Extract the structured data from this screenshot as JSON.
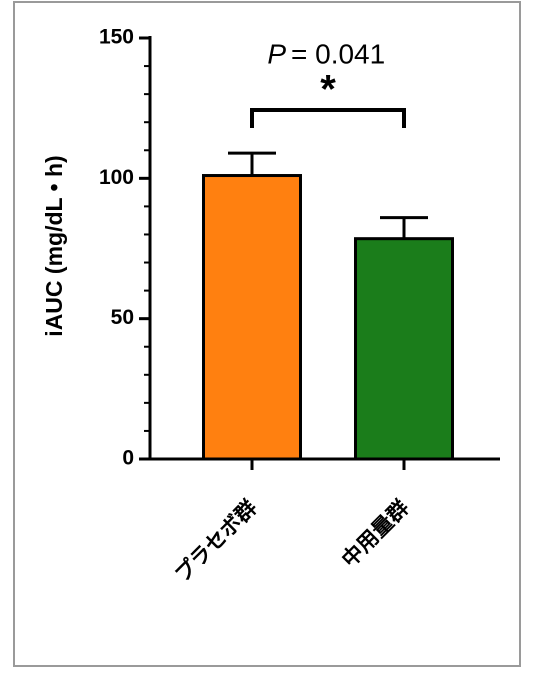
{
  "chart_data": {
    "type": "bar",
    "y_label": "iAUC (mg/dL • h)",
    "categories": [
      "プラセボ群",
      "中用量群"
    ],
    "series": [
      {
        "values": [
          101,
          78.5
        ],
        "errors": [
          8,
          7.5
        ],
        "colors": [
          "#ff8010",
          "#1b7d1b"
        ]
      }
    ],
    "ylim": [
      0,
      150
    ],
    "yticks": [
      0,
      50,
      100,
      150
    ],
    "minor_yticks": [
      10,
      20,
      30,
      40,
      60,
      70,
      80,
      90,
      110,
      120,
      130,
      140
    ],
    "annotation_p": "P",
    "annotation_value": "= 0.041",
    "significance": "*"
  }
}
